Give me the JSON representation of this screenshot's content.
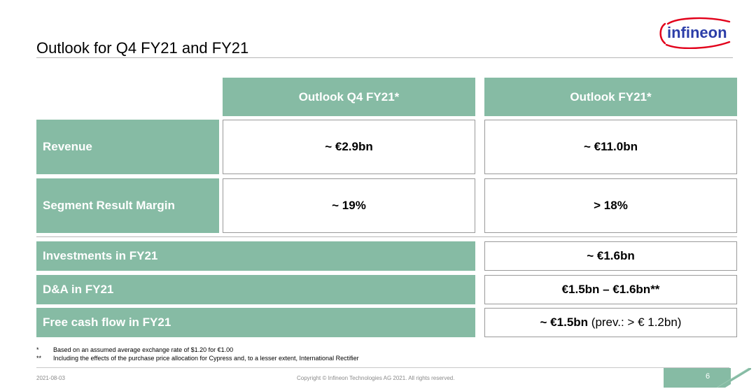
{
  "title": "Outlook for Q4 FY21 and FY21",
  "brand": {
    "logo_text": "infineon",
    "color": "#2b3da8",
    "arc_color": "#e2001a"
  },
  "colors": {
    "accent_green": "#86bba4",
    "border": "#9a9a9a"
  },
  "table": {
    "col_headers": [
      "Outlook Q4 FY21*",
      "Outlook FY21*"
    ],
    "rows": [
      {
        "label": "Revenue",
        "q4": "~ €2.9bn",
        "fy": "~ €11.0bn"
      },
      {
        "label": "Segment Result Margin",
        "q4": "~ 19%",
        "fy": "> 18%"
      }
    ],
    "fy_only_rows": [
      {
        "label": "Investments in FY21",
        "value": "~ €1.6bn",
        "note": ""
      },
      {
        "label": "D&A in FY21",
        "value": "€1.5bn – €1.6bn**",
        "note": ""
      },
      {
        "label": "Free cash flow in FY21",
        "value": "~ €1.5bn",
        "note": "(prev.: > € 1.2bn)"
      }
    ]
  },
  "footnotes": [
    {
      "mark": "*",
      "text": "Based on an assumed average exchange rate of $1.20 for €1.00"
    },
    {
      "mark": "**",
      "text": "Including the effects of the purchase price allocation for Cypress and, to a lesser extent, International Rectifier"
    }
  ],
  "footer": {
    "date": "2021-08-03",
    "copyright": "Copyright © Infineon Technologies AG 2021. All rights reserved.",
    "page_number": "6"
  }
}
